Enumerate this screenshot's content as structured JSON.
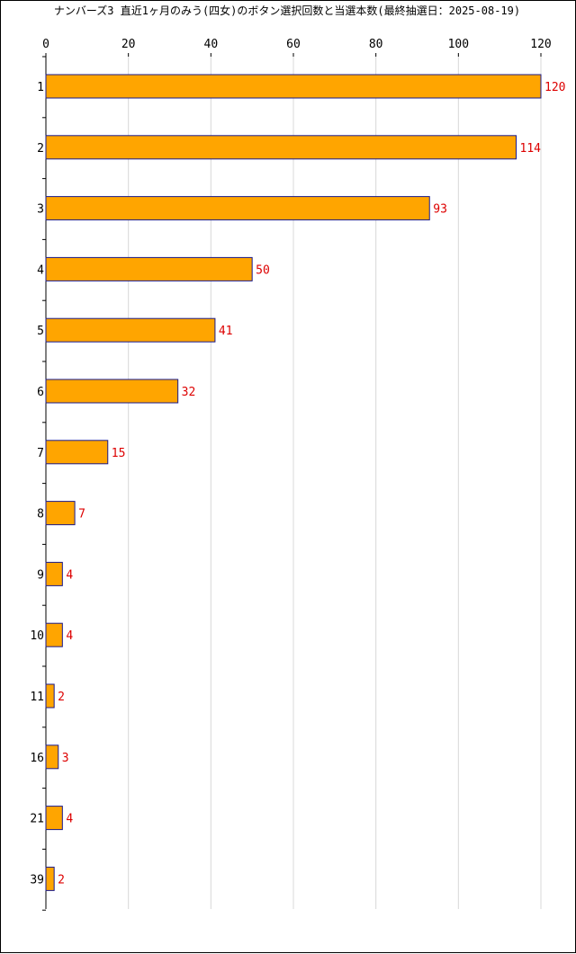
{
  "chart_data": {
    "type": "bar",
    "orientation": "horizontal",
    "title": "ナンバーズ3 直近1ヶ月のみう(四女)のボタン選択回数と当選本数(最終抽選日：2025-08-19)",
    "categories": [
      "1",
      "2",
      "3",
      "4",
      "5",
      "6",
      "7",
      "8",
      "9",
      "10",
      "11",
      "16",
      "21",
      "39"
    ],
    "values": [
      120,
      114,
      93,
      50,
      41,
      32,
      15,
      7,
      4,
      4,
      2,
      3,
      4,
      2
    ],
    "xlim": [
      0,
      120
    ],
    "xticks": [
      0,
      20,
      40,
      60,
      80,
      100,
      120
    ],
    "x_axis_position": "top",
    "grid": true,
    "legend": "none",
    "colors": {
      "bar_fill": "#FFA500",
      "bar_stroke": "#1A1A8C",
      "data_label": "#DD0000",
      "grid": "#D8D8D8",
      "axis": "#000000"
    }
  }
}
